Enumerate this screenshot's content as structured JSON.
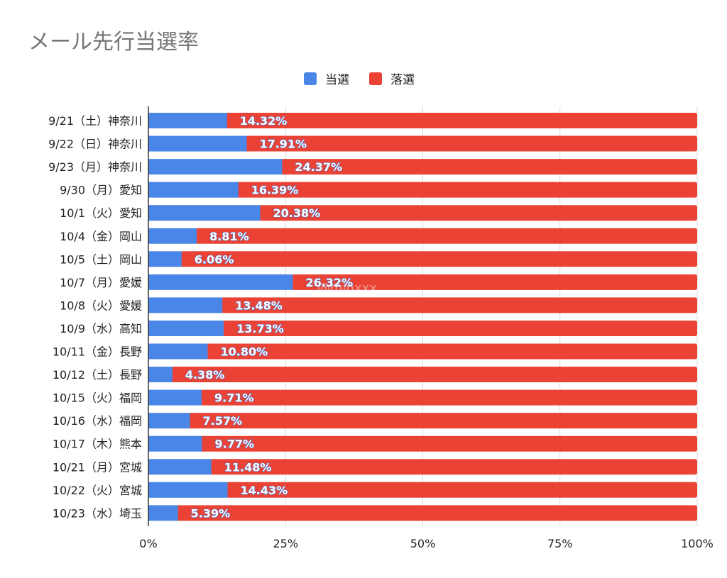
{
  "chart_data": {
    "type": "bar",
    "orientation": "horizontal",
    "stacked": "percent",
    "title": "メール先行当選率",
    "categories": [
      "9/21（土）神奈川",
      "9/22（日）神奈川",
      "9/23（月）神奈川",
      "9/30（月）愛知",
      "10/1（火）愛知",
      "10/4（金）岡山",
      "10/5（土）岡山",
      "10/7（月）愛媛",
      "10/8（火）愛媛",
      "10/9（水）高知",
      "10/11（金）長野",
      "10/12（土）長野",
      "10/15（火）福岡",
      "10/16（水）福岡",
      "10/17（木）熊本",
      "10/21（月）宮城",
      "10/22（火）宮城",
      "10/23（水）埼玉"
    ],
    "series": [
      {
        "name": "当選",
        "color": "#4a86e8",
        "values": [
          14.32,
          17.91,
          24.37,
          16.39,
          20.38,
          8.81,
          6.06,
          26.32,
          13.48,
          13.73,
          10.8,
          4.38,
          9.71,
          7.57,
          9.77,
          11.48,
          14.43,
          5.39
        ],
        "labels": [
          "14.32%",
          "17.91%",
          "24.37%",
          "16.39%",
          "20.38%",
          "8.81%",
          "6.06%",
          "26.32%",
          "13.48%",
          "13.73%",
          "10.80%",
          "4.38%",
          "9.71%",
          "7.57%",
          "9.77%",
          "11.48%",
          "14.43%",
          "5.39%"
        ]
      },
      {
        "name": "落選",
        "color": "#ea4335",
        "values": [
          85.68,
          82.09,
          75.63,
          83.61,
          79.62,
          91.19,
          93.94,
          73.68,
          86.52,
          86.27,
          89.2,
          95.62,
          90.29,
          92.43,
          90.23,
          88.52,
          85.57,
          94.61
        ]
      }
    ],
    "xlim": [
      0,
      100
    ],
    "xticks": [
      "0%",
      "25%",
      "50%",
      "75%",
      "100%"
    ],
    "grid": true,
    "legend_position": "top"
  },
  "watermark": "@minxxx"
}
